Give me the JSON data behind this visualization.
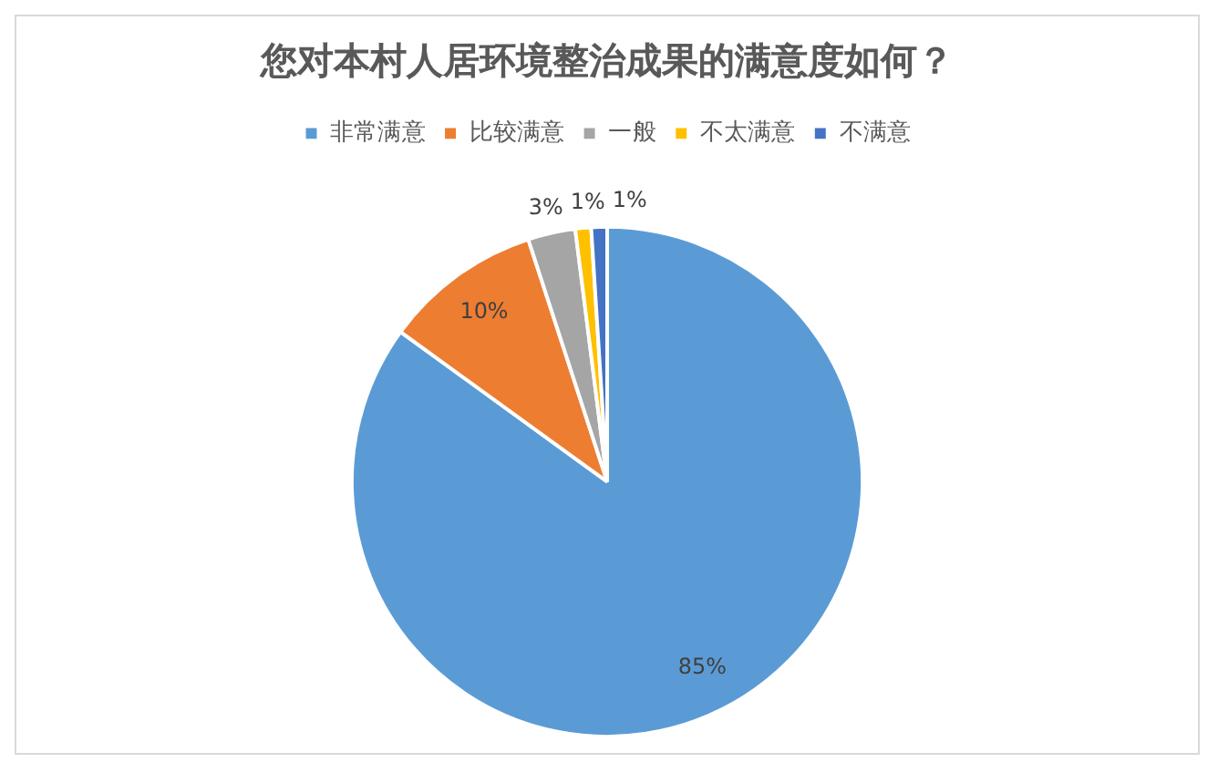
{
  "chart_data": {
    "type": "pie",
    "title": "您对本村人居环境整治成果的满意度如何？",
    "categories": [
      "非常满意",
      "比较满意",
      "一般",
      "不太满意",
      "不满意"
    ],
    "values": [
      85,
      10,
      3,
      1,
      1
    ],
    "colors": [
      "#5b9bd5",
      "#ed7d31",
      "#a5a5a5",
      "#ffc000",
      "#4472c4"
    ],
    "value_labels": [
      "85%",
      "10%",
      "3%",
      "1%",
      "1%"
    ],
    "legend": "top"
  }
}
